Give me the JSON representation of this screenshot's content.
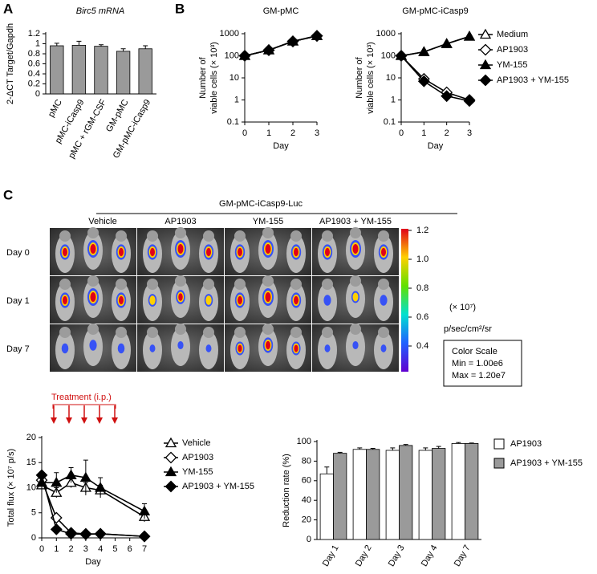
{
  "panel_labels": [
    "A",
    "B",
    "C"
  ],
  "imaging": {
    "header": "GM-pMC-iCasp9-Luc",
    "groups": [
      "Vehicle",
      "AP1903",
      "YM-155",
      "AP1903 + YM-155"
    ],
    "rows": [
      "Day 0",
      "Day 1",
      "Day 7"
    ],
    "colorbar_ticks": [
      "1.2",
      "1.0",
      "0.8",
      "0.6",
      "0.4"
    ],
    "scale_unit": "(× 10⁷)",
    "units": "p/sec/cm²/sr",
    "box": [
      "Color Scale",
      "Min = 1.00e6",
      "Max = 1.20e7"
    ],
    "treatment": "Treatment (i.p.)"
  },
  "chart_data": [
    {
      "type": "bar",
      "title": "Birc5 mRNA",
      "ylabel": "2-ΔCT Target/Gapdh",
      "categories": [
        "pMC",
        "pMC-iCasp9",
        "pMC + rGM-CSF",
        "GM-pMC",
        "GM-pMC-iCasp9"
      ],
      "values": [
        0.96,
        0.97,
        0.95,
        0.85,
        0.9
      ],
      "errors": [
        0.05,
        0.08,
        0.03,
        0.05,
        0.06
      ],
      "color": "#9a9a9a",
      "ylim": [
        0,
        1.2
      ],
      "yticks": [
        0,
        0.2,
        0.4,
        0.6,
        0.8,
        1,
        1.2
      ]
    },
    {
      "type": "line",
      "title": "GM-pMC",
      "ylabel": [
        "Number of",
        "viable cells (× 10³)"
      ],
      "xlabel": "Day",
      "log_y": true,
      "x": [
        0,
        1,
        2,
        3
      ],
      "xlim": [
        0,
        3
      ],
      "xticks": [
        0,
        1,
        2,
        3
      ],
      "ylim": [
        0.1,
        1000
      ],
      "yticks": [
        0.1,
        1,
        10,
        100,
        1000
      ],
      "series": [
        {
          "marker": "triangle-open",
          "color": "#000000",
          "values": [
            100,
            180,
            450,
            800
          ]
        },
        {
          "marker": "diamond-open",
          "color": "#000000",
          "values": [
            100,
            180,
            450,
            800
          ]
        },
        {
          "marker": "triangle",
          "color": "#000000",
          "values": [
            100,
            180,
            450,
            800
          ]
        },
        {
          "marker": "diamond",
          "color": "#000000",
          "values": [
            100,
            180,
            450,
            800
          ]
        }
      ]
    },
    {
      "type": "line",
      "title": "GM-pMC-iCasp9",
      "ylabel": [
        "Number of",
        "viable cells (× 10³)"
      ],
      "xlabel": "Day",
      "log_y": true,
      "x": [
        0,
        1,
        2,
        3
      ],
      "xlim": [
        0,
        3
      ],
      "xticks": [
        0,
        1,
        2,
        3
      ],
      "ylim": [
        0.1,
        1000
      ],
      "yticks": [
        0.1,
        1,
        10,
        100,
        1000
      ],
      "series": [
        {
          "name": "Medium",
          "marker": "triangle-open",
          "color": "#000000",
          "values": [
            100,
            150,
            350,
            750
          ]
        },
        {
          "name": "AP1903",
          "marker": "diamond-open",
          "color": "#000000",
          "values": [
            100,
            9,
            2.2,
            1
          ]
        },
        {
          "name": "YM-155",
          "marker": "triangle",
          "color": "#000000",
          "values": [
            100,
            150,
            350,
            750
          ]
        },
        {
          "name": "AP1903 + YM-155",
          "marker": "diamond",
          "color": "#000000",
          "values": [
            100,
            7,
            1.5,
            0.9
          ]
        }
      ]
    },
    {
      "type": "line",
      "ylabel": "Total flux (× 10⁷ p/s)",
      "xlabel": "Day",
      "x": [
        0,
        1,
        2,
        3,
        4,
        7
      ],
      "xlim": [
        0,
        7
      ],
      "xticks": [
        0,
        1,
        2,
        3,
        4,
        5,
        6,
        7
      ],
      "ylim": [
        0,
        20
      ],
      "yticks": [
        0,
        5,
        10,
        15,
        20
      ],
      "series": [
        {
          "name": "Vehicle",
          "marker": "triangle-open",
          "color": "#000000",
          "values": [
            10.5,
            9,
            11,
            10,
            9.5,
            4.2
          ],
          "errors": [
            1,
            1,
            1,
            1,
            1,
            1
          ]
        },
        {
          "name": "AP1903",
          "marker": "diamond-open",
          "color": "#000000",
          "values": [
            11.5,
            4,
            1,
            0.8,
            0.8,
            0.3
          ],
          "errors": [
            0.5,
            0.5,
            0.2,
            0.2,
            0.2,
            0.1
          ]
        },
        {
          "name": "YM-155",
          "marker": "triangle",
          "color": "#000000",
          "values": [
            11,
            11,
            12.5,
            12,
            10,
            5.3
          ],
          "errors": [
            1.5,
            2,
            1.5,
            3.5,
            2,
            1.5
          ]
        },
        {
          "name": "AP1903 + YM-155",
          "marker": "diamond",
          "color": "#000000",
          "values": [
            12.5,
            1.7,
            0.8,
            0.7,
            0.8,
            0.3
          ],
          "errors": [
            0.5,
            0.2,
            0.1,
            0.1,
            0.1,
            0.1
          ]
        }
      ]
    },
    {
      "type": "bar",
      "ylabel": "Reduction rate (%)",
      "categories": [
        "Day 1",
        "Day 2",
        "Day 3",
        "Day 4",
        "Day 7"
      ],
      "ylim": [
        0,
        100
      ],
      "yticks": [
        0,
        20,
        40,
        60,
        80,
        100
      ],
      "series": [
        {
          "name": "AP1903",
          "color": "#ffffff",
          "values": [
            67,
            92,
            91,
            91,
            98
          ],
          "errors": [
            7,
            1.5,
            2.5,
            2.5,
            1
          ]
        },
        {
          "name": "AP1903 + YM-155",
          "color": "#9a9a9a",
          "values": [
            88,
            92,
            96,
            93,
            98
          ],
          "errors": [
            1,
            1,
            1,
            2,
            0.5
          ]
        }
      ]
    }
  ]
}
